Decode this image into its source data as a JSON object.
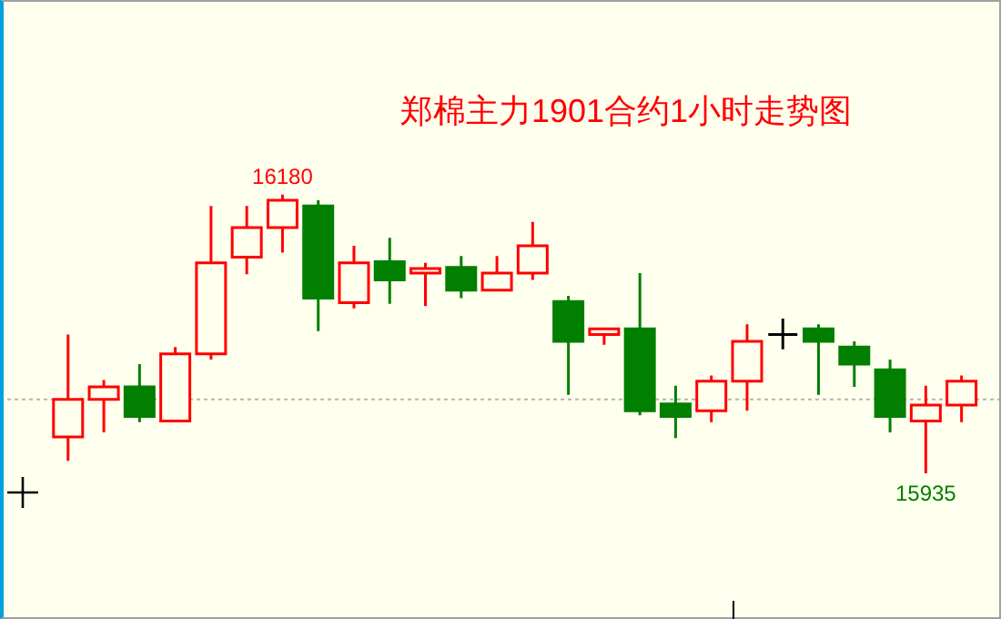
{
  "chart_data": {
    "type": "candlestick",
    "title": "郑棉主力1901合约1小时走势图",
    "categories": [
      null,
      null,
      null,
      null,
      null,
      null,
      null,
      null,
      null,
      null,
      null,
      null,
      null,
      null,
      null,
      null,
      null,
      null,
      null,
      null,
      null,
      null,
      null,
      null,
      null,
      null
    ],
    "ohlc": [
      [
        15967,
        16057,
        15946,
        16000
      ],
      [
        16000,
        16017,
        15971,
        16011
      ],
      [
        16011,
        16031,
        15980,
        15985
      ],
      [
        15981,
        16046,
        15981,
        16040
      ],
      [
        16040,
        16170,
        16035,
        16120
      ],
      [
        16125,
        16170,
        16110,
        16151
      ],
      [
        16151,
        16180,
        16129,
        16175
      ],
      [
        16170,
        16175,
        16060,
        16089
      ],
      [
        16085,
        16135,
        16080,
        16120
      ],
      [
        16121,
        16142,
        16084,
        16105
      ],
      [
        16111,
        16120,
        16082,
        16115
      ],
      [
        16116,
        16126,
        16089,
        16096
      ],
      [
        16096,
        16126,
        16096,
        16111
      ],
      [
        16111,
        16156,
        16105,
        16135
      ],
      [
        16086,
        16091,
        16004,
        16051
      ],
      [
        16057,
        16062,
        16048,
        16062
      ],
      [
        16062,
        16111,
        15986,
        15990
      ],
      [
        15996,
        16012,
        15966,
        15985
      ],
      [
        15990,
        16021,
        15980,
        16016
      ],
      [
        16016,
        16066,
        15990,
        16051
      ],
      [
        16057,
        16071,
        16044,
        16057
      ],
      [
        16062,
        16066,
        16004,
        16051
      ],
      [
        16046,
        16051,
        16011,
        16031
      ],
      [
        16026,
        16035,
        15971,
        15985
      ],
      [
        15981,
        16012,
        15935,
        15995
      ],
      [
        15995,
        16021,
        15980,
        16016
      ]
    ],
    "colors": [
      "#ff0000",
      "#ff0000",
      "#007f00",
      "#ff0000",
      "#ff0000",
      "#ff0000",
      "#ff0000",
      "#007f00",
      "#ff0000",
      "#007f00",
      "#ff0000",
      "#007f00",
      "#ff0000",
      "#ff0000",
      "#007f00",
      "#ff0000",
      "#007f00",
      "#007f00",
      "#ff0000",
      "#ff0000",
      "#000000",
      "#007f00",
      "#007f00",
      "#007f00",
      "#ff0000",
      "#ff0000"
    ],
    "ylim": [
      15807,
      16351
    ],
    "ref_lines": [
      {
        "axis": "y",
        "value": 16000,
        "color": "#b4b4b4",
        "line_style": "dotted"
      }
    ],
    "annotations": [
      {
        "text": "16180",
        "y": 16180
      },
      {
        "text": "15935",
        "y": 15935
      }
    ]
  }
}
